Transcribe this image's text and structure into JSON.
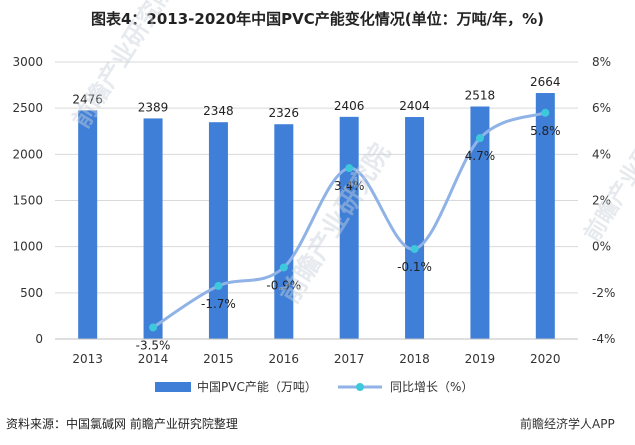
{
  "title": "图表4：2013-2020年中国PVC产能变化情况(单位：万吨/年，%)",
  "source": "资料来源：中国氯碱网 前瞻产业研究院整理",
  "brand": "前瞻经济学人APP",
  "watermark": "前瞻产业研究院",
  "colors": {
    "bar": "#3f7fd8",
    "line": "#8fb3e6",
    "marker": "#3ec8dc",
    "grid": "#d9d9d9"
  },
  "chart_data": {
    "type": "bar",
    "categories": [
      "2013",
      "2014",
      "2015",
      "2016",
      "2017",
      "2018",
      "2019",
      "2020"
    ],
    "series": [
      {
        "name": "中国PVC产能（万吨）",
        "type": "bar",
        "axis": "left",
        "values": [
          2476,
          2389,
          2348,
          2326,
          2406,
          2404,
          2518,
          2664
        ],
        "labels": [
          "2476",
          "2389",
          "2348",
          "2326",
          "2406",
          "2404",
          "2518",
          "2664"
        ]
      },
      {
        "name": "同比增长（%）",
        "type": "line",
        "axis": "right",
        "values": [
          null,
          -3.5,
          -1.7,
          -0.9,
          3.4,
          -0.1,
          4.7,
          5.8
        ],
        "labels": [
          "",
          "-3.5%",
          "-1.7%",
          "-0.9%",
          "3.4%",
          "-0.1%",
          "4.7%",
          "5.8%"
        ]
      }
    ],
    "y_left": {
      "min": 0,
      "max": 3000,
      "ticks": [
        0,
        500,
        1000,
        1500,
        2000,
        2500,
        3000
      ],
      "tick_labels": [
        "0",
        "500",
        "1000",
        "1500",
        "2000",
        "2500",
        "3000"
      ]
    },
    "y_right": {
      "min": -4,
      "max": 8,
      "ticks": [
        -4,
        -2,
        0,
        2,
        4,
        6,
        8
      ],
      "tick_labels": [
        "-4%",
        "-2%",
        "0%",
        "2%",
        "4%",
        "6%",
        "8%"
      ]
    },
    "grid": true,
    "legend_position": "bottom"
  }
}
